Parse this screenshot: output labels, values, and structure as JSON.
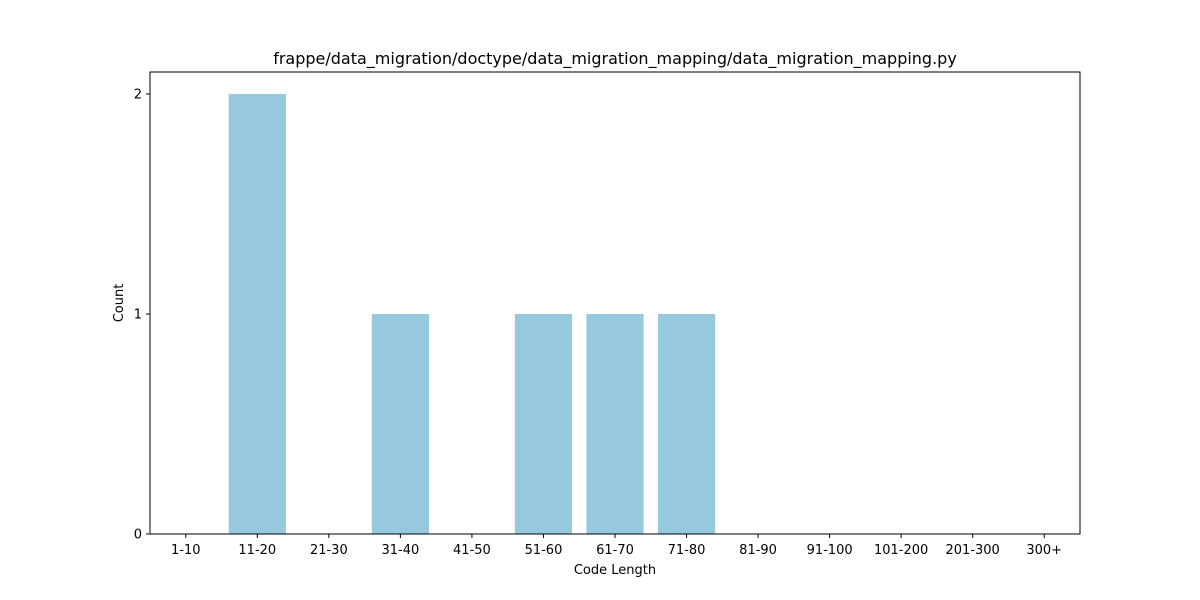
{
  "chart_data": {
    "type": "bar",
    "title": "frappe/data_migration/doctype/data_migration_mapping/data_migration_mapping.py",
    "xlabel": "Code Length",
    "ylabel": "Count",
    "categories": [
      "1-10",
      "11-20",
      "21-30",
      "31-40",
      "41-50",
      "51-60",
      "61-70",
      "71-80",
      "81-90",
      "91-100",
      "101-200",
      "201-300",
      "300+"
    ],
    "values": [
      0,
      2,
      0,
      1,
      0,
      1,
      1,
      1,
      0,
      0,
      0,
      0,
      0
    ],
    "ylim": [
      0,
      2.1
    ],
    "yticks": [
      0,
      1,
      2
    ],
    "bar_color": "#96c9dd",
    "grid": false,
    "legend": "none"
  }
}
